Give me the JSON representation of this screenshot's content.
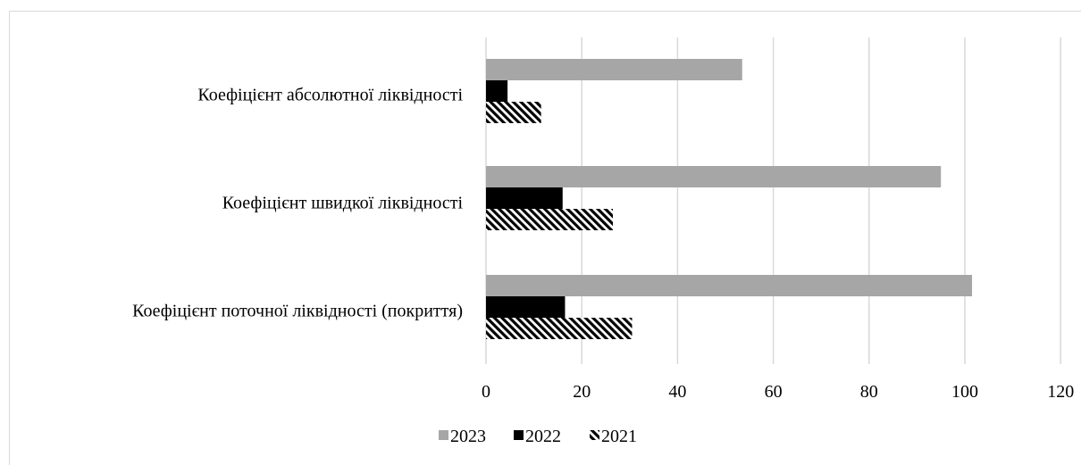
{
  "chart_data": {
    "type": "bar",
    "orientation": "horizontal",
    "title": "",
    "xlabel": "",
    "ylabel": "",
    "categories": [
      "Коефіцієнт абсолютної ліквідності",
      "Коефіцієнт швидкої ліквідності",
      "Коефіцієнт поточної ліквідності (покриття)"
    ],
    "series": [
      {
        "name": "2023",
        "values": [
          53.5,
          95,
          101.5
        ],
        "color": "#a6a6a6",
        "pattern": "solid"
      },
      {
        "name": "2022",
        "values": [
          4.5,
          16,
          16.5
        ],
        "color": "#000000",
        "pattern": "solid"
      },
      {
        "name": "2021",
        "values": [
          11.5,
          26.5,
          30.5
        ],
        "color": "#000000",
        "pattern": "diagonal-hatch"
      }
    ],
    "xlim": [
      0,
      120
    ],
    "xticks": [
      "0",
      "20",
      "40",
      "60",
      "80",
      "100",
      "120"
    ],
    "grid": "vertical",
    "legend": "bottom-left"
  }
}
